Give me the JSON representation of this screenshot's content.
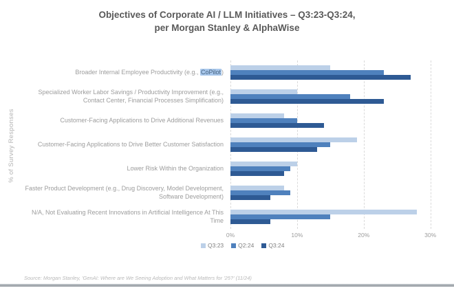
{
  "title": {
    "line1": "Objectives of Corporate AI / LLM Initiatives – Q3:23-Q3:24,",
    "line2": "per Morgan Stanley & AlphaWise"
  },
  "ylabel": "% of Survey Responses",
  "source": "Source: Morgan Stanley, 'GenAI: Where are We Seeing Adoption and What Matters for '25?' (11/24)",
  "colors": {
    "series_light": "#bcd0e8",
    "series_medium": "#4f81bd",
    "series_dark": "#2e5a94",
    "gridline": "#d9d9d9",
    "title_text": "#595959",
    "label_text": "#9c9c9c",
    "highlight_bg": "#a9c8ec",
    "highlight_text": "#44607e"
  },
  "chart_data": {
    "type": "bar",
    "orientation": "horizontal",
    "title": "Objectives of Corporate AI / LLM Initiatives – Q3:23-Q3:24, per Morgan Stanley & AlphaWise",
    "xlabel": "",
    "ylabel": "% of Survey Responses",
    "categories": [
      "Broader Internal Employee Productivity (e.g., CoPilot)",
      "Specialized Worker Labor Savings / Productivity Improvement (e.g., Contact Center, Financial Processes Simplification)",
      "Customer-Facing Applications to Drive Additional Revenues",
      "Customer-Facing Applications to Drive Better Customer Satisfaction",
      "Lower Risk Within the Organization",
      "Faster Product Development (e.g., Drug Discovery, Model Development, Software Development)",
      "N/A, Not Evaluating Recent Innovations in Artificial Intelligence At This Time"
    ],
    "category_highlights": {
      "0": {
        "prefix": "Broader Internal Employee Productivity (e.g., ",
        "highlight": "CoPilot",
        "suffix": ")"
      }
    },
    "series": [
      {
        "name": "Q3:23",
        "color": "#bcd0e8",
        "values": [
          15,
          10,
          8,
          19,
          10,
          8,
          28
        ]
      },
      {
        "name": "Q2:24",
        "color": "#4f81bd",
        "values": [
          23,
          18,
          10,
          15,
          9,
          9,
          15
        ]
      },
      {
        "name": "Q3:24",
        "color": "#2e5a94",
        "values": [
          27,
          23,
          14,
          13,
          8,
          6,
          6
        ]
      }
    ],
    "xticks": [
      "0%",
      "10%",
      "20%",
      "30%"
    ],
    "xtick_values": [
      0,
      10,
      20,
      30
    ],
    "xlim": [
      0,
      32
    ],
    "grid": "dashed-vertical",
    "legend_position": "bottom"
  }
}
